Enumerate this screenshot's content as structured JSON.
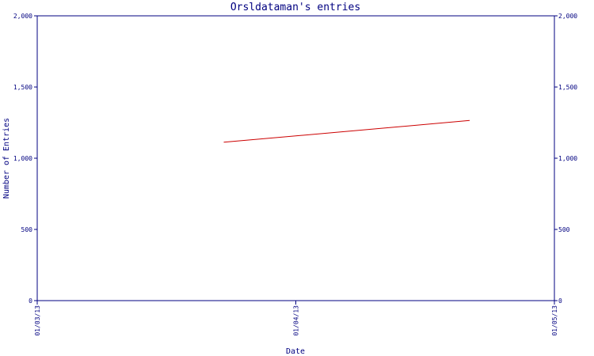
{
  "chart_data": {
    "type": "line",
    "title": "Orsldataman's entries",
    "xlabel": "Date",
    "ylabel": "Number of Entries",
    "x_tick_labels": [
      "01/03/13",
      "01/04/13",
      "01/05/13"
    ],
    "x_range": [
      "2013-03-01",
      "2013-05-01"
    ],
    "y_ticks": [
      0,
      500,
      1000,
      1500,
      2000
    ],
    "y_tick_labels": [
      "0",
      "500",
      "1,000",
      "1,500",
      "2,000"
    ],
    "ylim": [
      0,
      2000
    ],
    "grid": false,
    "series": [
      {
        "color": "#cc0000",
        "points": [
          {
            "x": "2013-03-23",
            "y": 1112
          },
          {
            "x": "2013-04-21",
            "y": 1265
          }
        ]
      }
    ]
  }
}
